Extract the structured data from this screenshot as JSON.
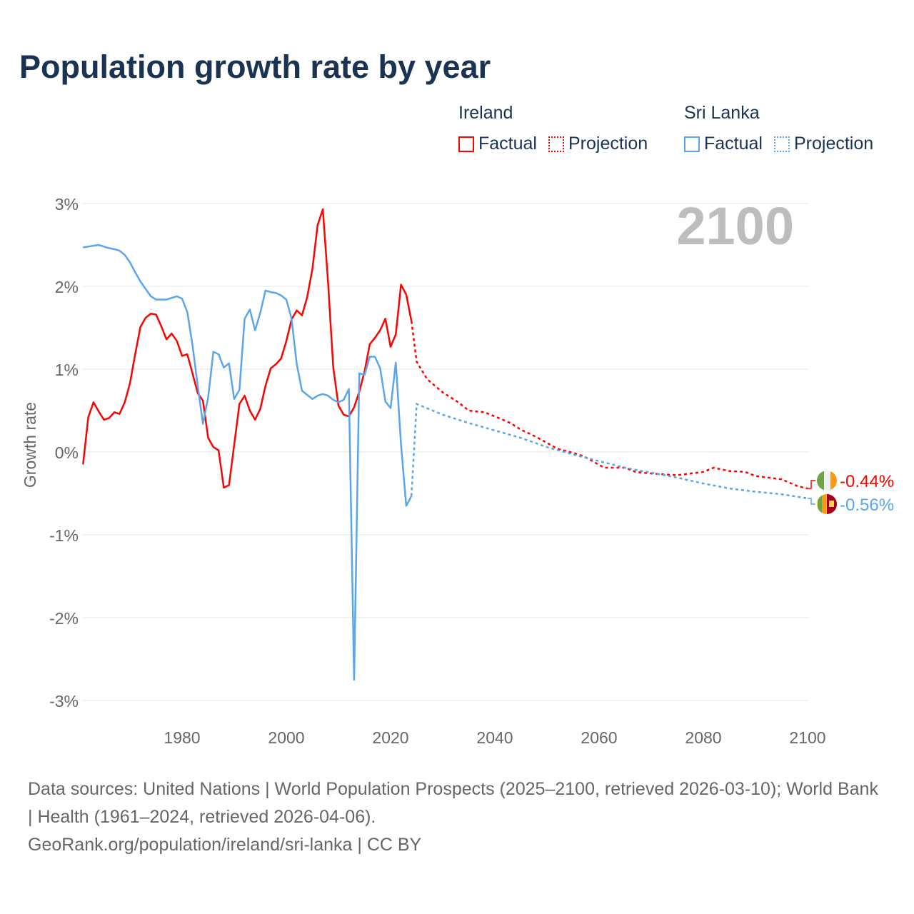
{
  "title": "Population growth rate by year",
  "legend": [
    {
      "country": "Ireland",
      "color": "#ff0000",
      "factual_label": "Factual",
      "projection_label": "Projection"
    },
    {
      "country": "Sri Lanka",
      "color": "#5aa5ec",
      "factual_label": "Factual",
      "projection_label": "Projection"
    }
  ],
  "footer": {
    "sources": "Data sources: United Nations | World Population Prospects (2025–2100, retrieved 2026-03-10); World Bank | Health (1961–2024, retrieved 2026-04-06).",
    "credit": "GeoRank.org/population/ireland/sri-lanka | CC BY"
  },
  "chart_data": {
    "type": "line",
    "title": "Population growth rate by year",
    "ylabel": "Growth rate",
    "xlabel": "",
    "current_year_label": "2100",
    "xlim": [
      1961,
      2100
    ],
    "ylim": [
      -3.4,
      3.2
    ],
    "xticks": [
      1980,
      2000,
      2020,
      2040,
      2060,
      2080,
      2100
    ],
    "yticks": [
      3,
      2,
      1,
      0,
      -1,
      -2,
      -3
    ],
    "ytick_labels": [
      "3%",
      "2%",
      "1%",
      "0%",
      "-1%",
      "-2%",
      "-3%"
    ],
    "grid": true,
    "legend_position": "top-right",
    "series": [
      {
        "name": "Ireland",
        "color": "#ff0000",
        "end_label": "-0.44%",
        "factual_start": 1961,
        "factual": [
          -0.15,
          0.42,
          0.6,
          0.49,
          0.39,
          0.41,
          0.48,
          0.46,
          0.6,
          0.83,
          1.18,
          1.51,
          1.62,
          1.67,
          1.66,
          1.52,
          1.36,
          1.43,
          1.34,
          1.16,
          1.18,
          0.95,
          0.71,
          0.62,
          0.17,
          0.06,
          0.02,
          -0.43,
          -0.4,
          0.09,
          0.58,
          0.68,
          0.5,
          0.39,
          0.52,
          0.8,
          1.01,
          1.06,
          1.13,
          1.34,
          1.6,
          1.71,
          1.65,
          1.87,
          2.21,
          2.74,
          2.93,
          2.05,
          1.02,
          0.56,
          0.45,
          0.43,
          0.54,
          0.73,
          0.97,
          1.3,
          1.38,
          1.47,
          1.61,
          1.27,
          1.42,
          2.02,
          1.9,
          1.58
        ],
        "projection": [
          [
            2025,
            1.09
          ],
          [
            2027,
            0.88
          ],
          [
            2030,
            0.72
          ],
          [
            2033,
            0.6
          ],
          [
            2035,
            0.5
          ],
          [
            2038,
            0.48
          ],
          [
            2040,
            0.43
          ],
          [
            2043,
            0.35
          ],
          [
            2045,
            0.27
          ],
          [
            2048,
            0.18
          ],
          [
            2050,
            0.11
          ],
          [
            2052,
            0.04
          ],
          [
            2055,
            -0.01
          ],
          [
            2057,
            -0.05
          ],
          [
            2059,
            -0.12
          ],
          [
            2061,
            -0.19
          ],
          [
            2065,
            -0.19
          ],
          [
            2067,
            -0.24
          ],
          [
            2070,
            -0.26
          ],
          [
            2075,
            -0.28
          ],
          [
            2080,
            -0.24
          ],
          [
            2082,
            -0.19
          ],
          [
            2085,
            -0.23
          ],
          [
            2088,
            -0.24
          ],
          [
            2090,
            -0.29
          ],
          [
            2095,
            -0.33
          ],
          [
            2098,
            -0.41
          ],
          [
            2100,
            -0.44
          ]
        ]
      },
      {
        "name": "Sri Lanka",
        "color": "#5aa5ec",
        "end_label": "-0.56%",
        "factual_start": 1961,
        "factual": [
          2.47,
          2.48,
          2.49,
          2.5,
          2.48,
          2.46,
          2.45,
          2.43,
          2.38,
          2.29,
          2.17,
          2.06,
          1.97,
          1.88,
          1.84,
          1.84,
          1.84,
          1.86,
          1.88,
          1.85,
          1.69,
          1.29,
          0.8,
          0.34,
          0.66,
          1.21,
          1.18,
          1.02,
          1.07,
          0.64,
          0.75,
          1.61,
          1.72,
          1.47,
          1.68,
          1.95,
          1.93,
          1.92,
          1.89,
          1.84,
          1.61,
          1.06,
          0.74,
          0.69,
          0.64,
          0.68,
          0.7,
          0.68,
          0.63,
          0.6,
          0.63,
          0.76,
          -2.75,
          0.95,
          0.93,
          1.15,
          1.15,
          1.01,
          0.61,
          0.53,
          1.08,
          0.09,
          -0.65,
          -0.53
        ],
        "projection": [
          [
            2025,
            0.58
          ],
          [
            2030,
            0.45
          ],
          [
            2035,
            0.35
          ],
          [
            2040,
            0.26
          ],
          [
            2045,
            0.17
          ],
          [
            2050,
            0.06
          ],
          [
            2055,
            -0.03
          ],
          [
            2060,
            -0.11
          ],
          [
            2065,
            -0.19
          ],
          [
            2070,
            -0.25
          ],
          [
            2075,
            -0.31
          ],
          [
            2080,
            -0.38
          ],
          [
            2085,
            -0.44
          ],
          [
            2090,
            -0.48
          ],
          [
            2095,
            -0.51
          ],
          [
            2100,
            -0.56
          ]
        ]
      }
    ]
  }
}
